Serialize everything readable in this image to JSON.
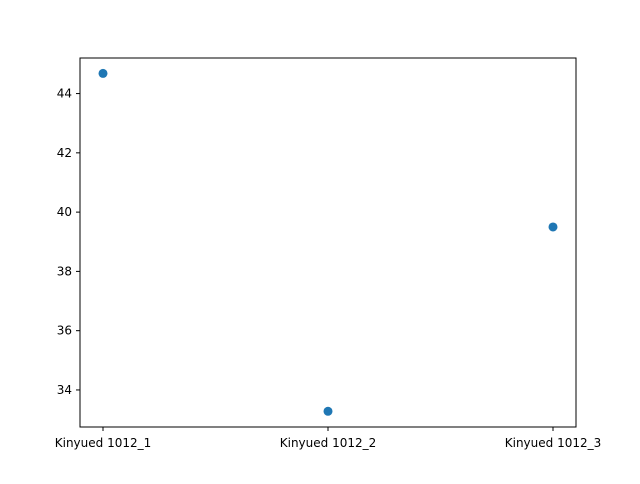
{
  "chart_data": {
    "type": "scatter",
    "title": "",
    "xlabel": "",
    "ylabel": "",
    "categories": [
      "Kinyued 1012_1",
      "Kinyued 1012_2",
      "Kinyued 1012_3"
    ],
    "series": [
      {
        "values": [
          44.68,
          33.28,
          39.5
        ],
        "color": "#1f77b4"
      }
    ],
    "ylim": [
      32.75,
      45.2
    ],
    "yticks": [
      34,
      36,
      38,
      40,
      42,
      44
    ],
    "grid": false,
    "legend": "none"
  }
}
